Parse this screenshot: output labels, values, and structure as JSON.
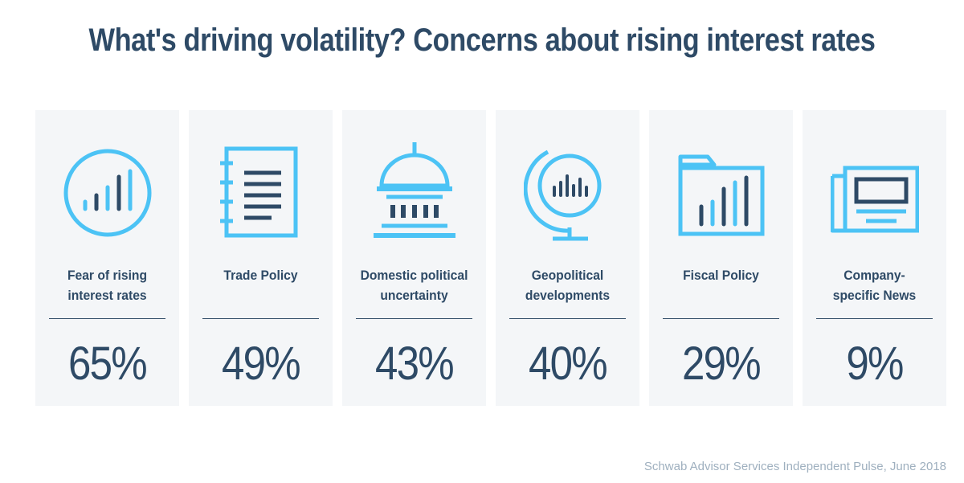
{
  "title": "What's driving volatility? Concerns about rising interest rates",
  "source": "Schwab Advisor Services Independent Pulse, June 2018",
  "colors": {
    "icon_blue": "#4cc3f5",
    "bar_navy": "#2e4a66",
    "card_bg": "#f4f6f8"
  },
  "chart_data": {
    "type": "table",
    "title": "What's driving volatility? Concerns about rising interest rates",
    "categories": [
      "Fear of rising interest rates",
      "Trade Policy",
      "Domestic political uncertainty",
      "Geopolitical developments",
      "Fiscal Policy",
      "Company-specific News"
    ],
    "values": [
      65,
      49,
      43,
      40,
      29,
      9
    ],
    "value_labels": [
      "65%",
      "49%",
      "43%",
      "40%",
      "29%",
      "9%"
    ],
    "unit": "%",
    "icons": [
      "bar-chart-circle-icon",
      "notebook-icon",
      "capitol-dome-icon",
      "globe-chart-icon",
      "folder-chart-icon",
      "newspaper-icon"
    ]
  }
}
